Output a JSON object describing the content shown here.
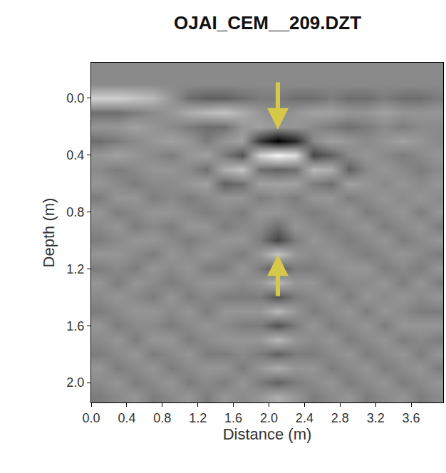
{
  "chart_data": {
    "type": "heatmap",
    "title": "OJAI_CEM__209.DZT",
    "x_label": "Distance (m)",
    "y_label": "Depth (m)",
    "xlim": [
      0,
      3.96
    ],
    "ylim": [
      2.14,
      -0.25
    ],
    "xticks": [
      {
        "value": 0,
        "label": "0.0"
      },
      0.4,
      0.8,
      1.2,
      1.6,
      {
        "value": 2,
        "label": "2.0"
      },
      2.4,
      2.8,
      3.2,
      3.6
    ],
    "yticks": [
      {
        "value": 0,
        "label": "0.0"
      },
      0.4,
      0.8,
      1.2,
      1.6,
      {
        "value": 2,
        "label": "2.0"
      }
    ],
    "zlim": [
      -1,
      1
    ],
    "color": "gray",
    "grid": false,
    "x": [
      0.1,
      0.3,
      0.5,
      0.7,
      0.9,
      1.1,
      1.3,
      1.5,
      1.7,
      1.9,
      2.1,
      2.3,
      2.5,
      2.7,
      2.9,
      3.1,
      3.3,
      3.5,
      3.7,
      3.9
    ],
    "y": [
      -0.2,
      -0.1,
      0.0,
      0.1,
      0.2,
      0.3,
      0.4,
      0.5,
      0.6,
      0.7,
      0.8,
      0.9,
      1.0,
      1.1,
      1.2,
      1.3,
      1.4,
      1.5,
      1.6,
      1.7,
      1.8,
      1.9,
      2.0,
      2.1
    ],
    "cells": [
      [
        0,
        0,
        0,
        0,
        0,
        0,
        0,
        0,
        0,
        0,
        0,
        0,
        0,
        0,
        0,
        0,
        0,
        0,
        0,
        0
      ],
      [
        0,
        0,
        0,
        0,
        0,
        0,
        0,
        0,
        0,
        0,
        0,
        0,
        0,
        0,
        0,
        0,
        0,
        0,
        0,
        0
      ],
      [
        0.6,
        0.6,
        0.5,
        0.4,
        0.1,
        -0.2,
        -0.3,
        -0.3,
        -0.2,
        -0.1,
        -0.1,
        -0.2,
        -0.2,
        -0.1,
        -0.2,
        -0.2,
        -0.1,
        -0.2,
        -0.2,
        -0.1
      ],
      [
        -0.2,
        -0.2,
        -0.1,
        0,
        0.1,
        0.3,
        0.4,
        0.5,
        0.3,
        0.1,
        0,
        0.1,
        0.2,
        0.2,
        0.1,
        0.1,
        0.2,
        0.1,
        0.1,
        0.1
      ],
      [
        0.1,
        0.1,
        0.2,
        0.1,
        0,
        -0.1,
        -0.2,
        -0.2,
        0.1,
        0.2,
        0.1,
        0.1,
        0,
        -0.1,
        -0.2,
        -0.1,
        0,
        -0.1,
        0,
        0
      ],
      [
        -0.2,
        -0.1,
        0,
        0.1,
        0.2,
        0.1,
        -0.1,
        0.1,
        0.2,
        -0.6,
        -1,
        -0.7,
        0,
        0.2,
        0.1,
        0,
        0.1,
        0.2,
        0.1,
        0
      ],
      [
        0.1,
        0.2,
        0.1,
        0,
        -0.1,
        0.1,
        0.2,
        -0.1,
        -0.4,
        0.6,
        0.9,
        0.7,
        -0.5,
        -0.3,
        0,
        0.1,
        0,
        -0.1,
        0,
        0.1
      ],
      [
        0,
        -0.1,
        0,
        0.1,
        0.1,
        0,
        -0.2,
        0.3,
        0.5,
        -0.2,
        -0.3,
        -0.2,
        0.4,
        0.3,
        -0.3,
        0,
        0.1,
        0,
        -0.1,
        0
      ],
      [
        0.1,
        0,
        -0.1,
        0,
        0,
        0.1,
        0.2,
        -0.3,
        -0.2,
        0.2,
        0.2,
        0.2,
        -0.1,
        -0.2,
        0.2,
        0.1,
        0,
        0.1,
        0,
        0.1
      ],
      [
        -0.1,
        0.1,
        0.1,
        -0.1,
        0,
        -0.1,
        0,
        0.1,
        0.1,
        -0.1,
        0,
        -0.1,
        0.1,
        0.1,
        -0.1,
        0,
        0.1,
        0,
        0.1,
        0
      ],
      [
        0.1,
        -0.1,
        0,
        0.1,
        0.1,
        0,
        -0.1,
        0,
        -0.1,
        0.1,
        0.1,
        0,
        -0.1,
        0,
        0.1,
        -0.1,
        0,
        0.1,
        -0.1,
        0.1
      ],
      [
        0,
        0.1,
        -0.1,
        0,
        -0.1,
        0.1,
        0.1,
        -0.1,
        0,
        0,
        -0.2,
        0.1,
        0,
        -0.1,
        0,
        0.1,
        -0.1,
        0,
        0.1,
        -0.1
      ],
      [
        -0.1,
        0,
        0.1,
        0.1,
        0,
        -0.1,
        0,
        0.1,
        0.1,
        -0.1,
        -0.5,
        -0.1,
        0.1,
        0,
        -0.1,
        0,
        0.1,
        -0.1,
        0,
        0.1
      ],
      [
        0.1,
        0.1,
        0,
        -0.1,
        0.1,
        0,
        0.1,
        0,
        -0.1,
        0.1,
        0.5,
        0.1,
        0,
        0.1,
        0,
        -0.1,
        0,
        0.1,
        0,
        -0.1
      ],
      [
        -0.1,
        0,
        -0.1,
        0.1,
        0,
        0.1,
        -0.1,
        -0.1,
        0.1,
        -0.1,
        -0.4,
        -0.1,
        -0.1,
        0,
        0.1,
        0.1,
        -0.1,
        0,
        -0.1,
        0.1
      ],
      [
        0.1,
        -0.1,
        0.1,
        0,
        -0.1,
        0,
        0.1,
        0.1,
        0,
        0.1,
        0.4,
        0.1,
        0.1,
        -0.1,
        0,
        0,
        0.1,
        -0.1,
        0.1,
        -0.1
      ],
      [
        0,
        0.1,
        0,
        -0.1,
        0.1,
        -0.1,
        0,
        -0.1,
        -0.1,
        -0.1,
        -0.4,
        -0.1,
        0,
        0.1,
        -0.1,
        0.1,
        0,
        0.1,
        0,
        0.1
      ],
      [
        -0.1,
        0,
        0.1,
        0.1,
        0,
        0.1,
        -0.1,
        0.1,
        0.1,
        0.1,
        0.4,
        0.1,
        -0.1,
        0,
        0.1,
        -0.1,
        0.1,
        0,
        -0.1,
        -0.1
      ],
      [
        0.1,
        -0.1,
        0,
        0,
        -0.1,
        0,
        0.1,
        0,
        -0.1,
        -0.1,
        -0.4,
        -0.1,
        0.1,
        -0.1,
        0,
        0.1,
        -0.1,
        0.1,
        0.1,
        0.1
      ],
      [
        0,
        0.1,
        -0.1,
        0.1,
        0.1,
        -0.1,
        0,
        0.1,
        0.1,
        0.1,
        0.4,
        0.1,
        0,
        0.1,
        -0.1,
        0,
        0.1,
        -0.1,
        0,
        -0.1
      ],
      [
        -0.1,
        0,
        0.1,
        -0.1,
        0,
        0.1,
        -0.1,
        -0.1,
        0,
        -0.1,
        -0.3,
        -0.1,
        -0.1,
        0,
        0.1,
        -0.1,
        0,
        0.1,
        -0.1,
        0.1
      ],
      [
        0.1,
        -0.1,
        0,
        0.1,
        -0.1,
        0,
        0.1,
        0.1,
        -0.1,
        0.1,
        0.3,
        0.1,
        0.1,
        -0.1,
        0,
        0.1,
        -0.1,
        0,
        0.1,
        -0.1
      ],
      [
        0,
        0.1,
        -0.1,
        0,
        0.1,
        -0.1,
        0,
        -0.1,
        0.1,
        -0.1,
        -0.3,
        -0.1,
        0,
        0.1,
        -0.1,
        0,
        0.1,
        -0.1,
        0,
        0.1
      ],
      [
        -0.1,
        0,
        0.1,
        -0.1,
        0,
        0.1,
        -0.1,
        0.1,
        0,
        0.1,
        0.3,
        0.1,
        -0.1,
        0,
        0.1,
        -0.1,
        0,
        0.1,
        -0.1,
        0
      ]
    ],
    "arrows": [
      {
        "x": 2.1,
        "y": 0.22,
        "from_y": -0.12
      },
      {
        "x": 2.1,
        "y": 1.1,
        "from_y": 1.4
      }
    ]
  }
}
